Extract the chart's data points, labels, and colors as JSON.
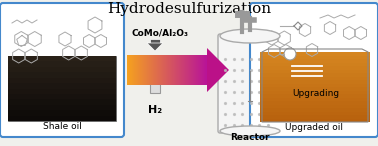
{
  "title": "Hydrodesulfurization",
  "title_fontsize": 11,
  "title_color": "#000000",
  "background_color": "#f0f0ec",
  "left_box_color": "#4488cc",
  "right_box_color": "#4488cc",
  "shale_oil_label": "Shale oil",
  "upgraded_oil_label": "Upgraded oil",
  "reactor_label": "Reactor",
  "upgrading_label": "Upgrading",
  "como_label": "CoMo/Al₂O₃",
  "h2_label": "H₂",
  "label_fontsize": 6.5,
  "fig_width": 3.78,
  "fig_height": 1.46,
  "dpi": 100
}
